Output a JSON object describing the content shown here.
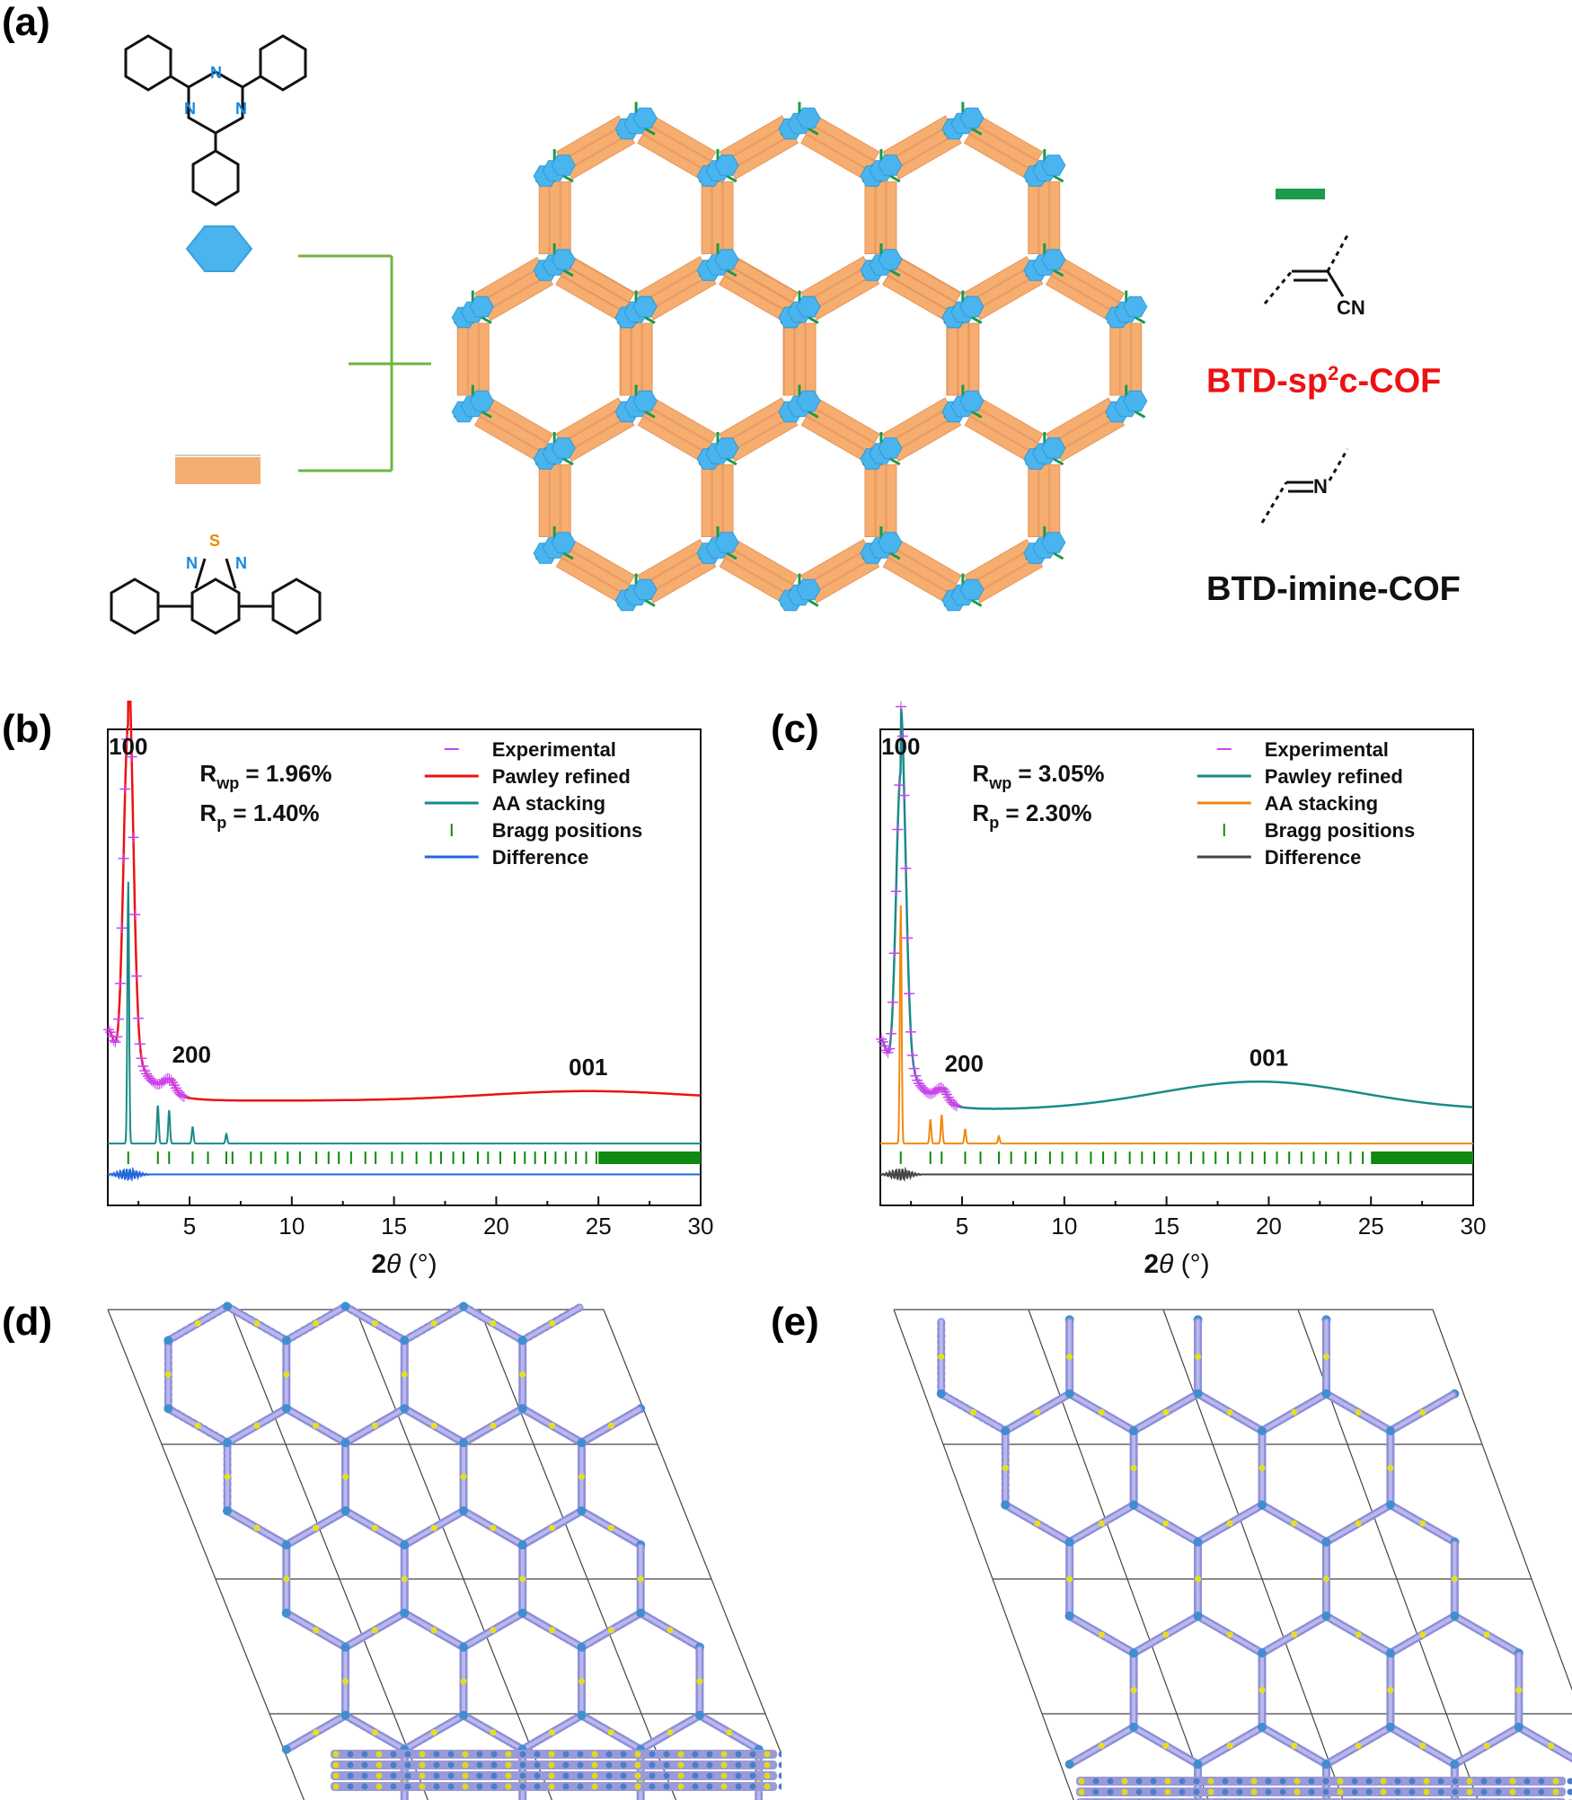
{
  "panel_labels": {
    "a": "(a)",
    "b": "(b)",
    "c": "(c)",
    "d": "(d)",
    "e": "(e)"
  },
  "panel_a": {
    "triazine_atoms": [
      "N",
      "N",
      "N"
    ],
    "btd_atoms": [
      "S",
      "N",
      "N"
    ],
    "linker_cn": "CN",
    "linker_imine_atom": "N",
    "cof_label_1": "BTD-sp",
    "cof_label_1_sup": "2",
    "cof_label_1_tail": "c-COF",
    "cof_label_2": "BTD-imine-COF",
    "colors": {
      "node": "#4ab4ee",
      "linker": "#f5ad70",
      "bond": "#1a9a4a",
      "bracket": "#72b443",
      "red_label": "#ee1111"
    }
  },
  "chart_data": [
    {
      "type": "line",
      "panel": "b",
      "x_label": "2θ (°)",
      "xlim": [
        1,
        30
      ],
      "x_ticks": [
        5,
        10,
        15,
        20,
        25,
        30
      ],
      "y_ticks_visible": false,
      "stats": {
        "rwp_label": "R",
        "rwp_sub": "wp",
        "rwp_value": " = 1.96%",
        "rp_label": "R",
        "rp_sub": "p",
        "rp_value": " = 1.40%"
      },
      "peak_labels": [
        {
          "text": "100",
          "x": 2.0
        },
        {
          "text": "200",
          "x": 4.0
        },
        {
          "text": "001",
          "x": 24.5
        }
      ],
      "legend": [
        {
          "name": "Experimental",
          "color": "#cc44ee",
          "style": "marker"
        },
        {
          "name": "Pawley refined",
          "color": "#ee1111",
          "style": "line"
        },
        {
          "name": "AA stacking",
          "color": "#1a8a8a",
          "style": "line"
        },
        {
          "name": "Bragg positions",
          "color": "#118811",
          "style": "tick"
        },
        {
          "name": "Difference",
          "color": "#2266dd",
          "style": "line"
        }
      ],
      "legend_position": "top-right",
      "main_peak_x": 2.0,
      "main_peak_y": 1.0,
      "background_level": 0.22,
      "broad_hump_x": 24.5,
      "broad_hump_height": 0.02,
      "aa_peaks": [
        {
          "x": 2.0,
          "h": 0.55
        },
        {
          "x": 3.45,
          "h": 0.08
        },
        {
          "x": 4.0,
          "h": 0.07
        },
        {
          "x": 5.15,
          "h": 0.035
        },
        {
          "x": 6.8,
          "h": 0.02
        }
      ],
      "bragg_positions": [
        2.0,
        3.45,
        4.0,
        5.15,
        5.9,
        6.8,
        7.1,
        8.0,
        8.5,
        9.2,
        9.8,
        10.4,
        11.2,
        11.8,
        12.3,
        12.9,
        13.6,
        14.1,
        14.9,
        15.4,
        16.1,
        16.8,
        17.3,
        17.9,
        18.4,
        19.1,
        19.6,
        20.2,
        20.9,
        21.4,
        21.9,
        22.4,
        22.9,
        23.4,
        23.9,
        24.4,
        24.9
      ],
      "bragg_dense_from": 25.0
    },
    {
      "type": "line",
      "panel": "c",
      "x_label": "2θ (°)",
      "xlim": [
        1,
        30
      ],
      "x_ticks": [
        5,
        10,
        15,
        20,
        25,
        30
      ],
      "y_ticks_visible": false,
      "stats": {
        "rwp_label": "R",
        "rwp_sub": "wp",
        "rwp_value": " = 3.05%",
        "rp_label": "R",
        "rp_sub": "p",
        "rp_value": " = 2.30%"
      },
      "peak_labels": [
        {
          "text": "100",
          "x": 2.0
        },
        {
          "text": "200",
          "x": 4.0
        },
        {
          "text": "001",
          "x": 20.0
        }
      ],
      "legend": [
        {
          "name": "Experimental",
          "color": "#cc44ee",
          "style": "marker"
        },
        {
          "name": "Pawley refined",
          "color": "#1a8a8a",
          "style": "line"
        },
        {
          "name": "AA stacking",
          "color": "#f08a10",
          "style": "line"
        },
        {
          "name": "Bragg positions",
          "color": "#118811",
          "style": "tick"
        },
        {
          "name": "Difference",
          "color": "#444444",
          "style": "line"
        }
      ],
      "legend_position": "top-right",
      "main_peak_x": 2.0,
      "main_peak_y": 0.9,
      "background_level": 0.2,
      "broad_hump_x": 19.5,
      "broad_hump_height": 0.06,
      "aa_peaks": [
        {
          "x": 2.0,
          "h": 0.5
        },
        {
          "x": 3.45,
          "h": 0.05
        },
        {
          "x": 4.0,
          "h": 0.06
        },
        {
          "x": 5.15,
          "h": 0.03
        },
        {
          "x": 6.8,
          "h": 0.015
        }
      ],
      "bragg_positions": [
        2.0,
        3.45,
        4.0,
        5.15,
        5.9,
        6.8,
        7.4,
        8.1,
        8.6,
        9.3,
        9.9,
        10.6,
        11.3,
        11.9,
        12.5,
        13.2,
        13.8,
        14.4,
        15.0,
        15.6,
        16.2,
        16.8,
        17.4,
        18.0,
        18.6,
        19.2,
        19.8,
        20.4,
        21.0,
        21.6,
        22.2,
        22.8,
        23.4,
        24.0,
        24.6
      ],
      "bragg_dense_from": 25.0
    }
  ]
}
